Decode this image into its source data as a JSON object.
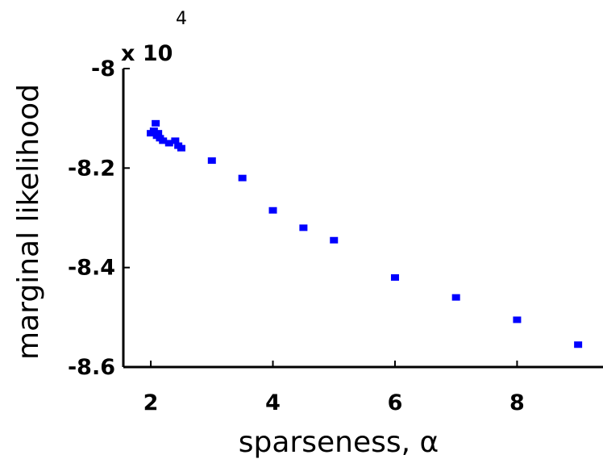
{
  "chart_data": {
    "type": "scatter",
    "xlabel": "sparseness, α",
    "ylabel": "marginal likelihood",
    "y_multiplier": {
      "base": "x 10",
      "exponent": "4"
    },
    "xlim": [
      1.55,
      9.5
    ],
    "ylim": [
      -86000,
      -80000
    ],
    "x_ticks": [
      2,
      4,
      6,
      8
    ],
    "x_tick_labels": [
      "2",
      "4",
      "6",
      "8"
    ],
    "y_ticks": [
      -80000,
      -82000,
      -84000,
      -86000
    ],
    "y_tick_labels": [
      "-8",
      "-8.2",
      "-8.4",
      "-8.6"
    ],
    "grid": false,
    "marker_color": "#0000ff",
    "points": [
      {
        "x": 2.0,
        "y": -81300
      },
      {
        "x": 2.05,
        "y": -81250
      },
      {
        "x": 2.08,
        "y": -81100
      },
      {
        "x": 2.1,
        "y": -81350
      },
      {
        "x": 2.12,
        "y": -81300
      },
      {
        "x": 2.15,
        "y": -81400
      },
      {
        "x": 2.2,
        "y": -81450
      },
      {
        "x": 2.3,
        "y": -81500
      },
      {
        "x": 2.4,
        "y": -81450
      },
      {
        "x": 2.45,
        "y": -81550
      },
      {
        "x": 2.5,
        "y": -81600
      },
      {
        "x": 3.0,
        "y": -81850
      },
      {
        "x": 3.5,
        "y": -82200
      },
      {
        "x": 4.0,
        "y": -82850
      },
      {
        "x": 4.5,
        "y": -83200
      },
      {
        "x": 5.0,
        "y": -83450
      },
      {
        "x": 6.0,
        "y": -84200
      },
      {
        "x": 7.0,
        "y": -84600
      },
      {
        "x": 8.0,
        "y": -85050
      },
      {
        "x": 9.0,
        "y": -85550
      }
    ]
  }
}
